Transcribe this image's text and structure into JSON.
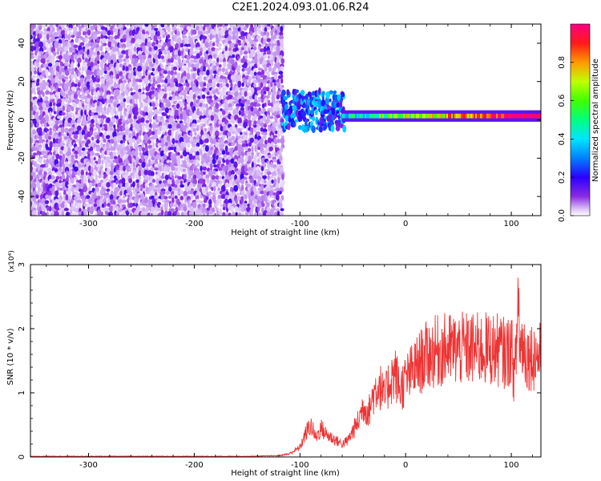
{
  "title": "C2E1.2024.093.01.06.R24",
  "chart_data": [
    {
      "type": "heatmap",
      "xlabel": "Height of straight line (km)",
      "ylabel": "Frequency (Hz)",
      "xlim": [
        -355,
        128
      ],
      "ylim": [
        -50,
        50
      ],
      "x_ticks": [
        -300,
        -200,
        -100,
        0,
        100
      ],
      "y_ticks": [
        -40,
        -20,
        0,
        20,
        40
      ],
      "colorbar": {
        "label": "Normalized spectral amplitude",
        "range": [
          0,
          1
        ],
        "ticks": [
          "0.0",
          "0.2",
          "0.4",
          "0.6",
          "0.8"
        ],
        "colors": [
          "#ffffff",
          "#8a2be2",
          "#2a00ff",
          "#00e5ff",
          "#00ff40",
          "#a0ff00",
          "#ff9900",
          "#ff0040",
          "#ff0080"
        ]
      },
      "regions": [
        {
          "x_range": [
            -355,
            -117
          ],
          "description_level": "noise",
          "amplitude_range": [
            0.0,
            0.15
          ]
        },
        {
          "x_range": [
            -117,
            -60
          ],
          "freq_center": 5,
          "freq_spread": 10,
          "amplitude_range": [
            0.1,
            0.4
          ]
        },
        {
          "x_range": [
            -60,
            128
          ],
          "freq_center": 2,
          "freq_spread": 2,
          "amplitude_range": [
            0.4,
            1.0
          ]
        }
      ]
    },
    {
      "type": "line",
      "xlabel": "Height of straight line (km)",
      "ylabel": "SNR (10 * v/v)",
      "y_multiplier": "(x10⁴)",
      "xlim": [
        -355,
        128
      ],
      "ylim": [
        0,
        3
      ],
      "x_ticks": [
        -300,
        -200,
        -100,
        0,
        100
      ],
      "y_ticks": [
        0,
        1,
        2,
        3
      ],
      "line_color": "#ee3333",
      "series": [
        {
          "x": [
            -355,
            -300,
            -250,
            -200,
            -150,
            -120,
            -110,
            -100,
            -95,
            -90,
            -85,
            -80,
            -75,
            -70,
            -65,
            -60,
            -55,
            -50,
            -45,
            -40,
            -35,
            -30,
            -25,
            -20,
            -15,
            -10,
            -5,
            0,
            5,
            10,
            15,
            20,
            25,
            30,
            40,
            50,
            60,
            70,
            80,
            90,
            95,
            100,
            103,
            105,
            107,
            108,
            110,
            115,
            120,
            128
          ],
          "y": [
            0.01,
            0.01,
            0.01,
            0.01,
            0.01,
            0.02,
            0.05,
            0.15,
            0.35,
            0.5,
            0.3,
            0.45,
            0.35,
            0.3,
            0.25,
            0.2,
            0.25,
            0.4,
            0.55,
            0.8,
            0.7,
            1.0,
            1.15,
            0.9,
            1.2,
            1.3,
            1.05,
            1.2,
            1.3,
            1.4,
            1.5,
            1.58,
            1.62,
            1.65,
            1.68,
            1.68,
            1.68,
            1.68,
            1.68,
            1.66,
            1.6,
            1.7,
            1.2,
            1.8,
            2.7,
            1.6,
            1.8,
            1.58,
            1.58,
            1.57
          ]
        }
      ]
    }
  ]
}
